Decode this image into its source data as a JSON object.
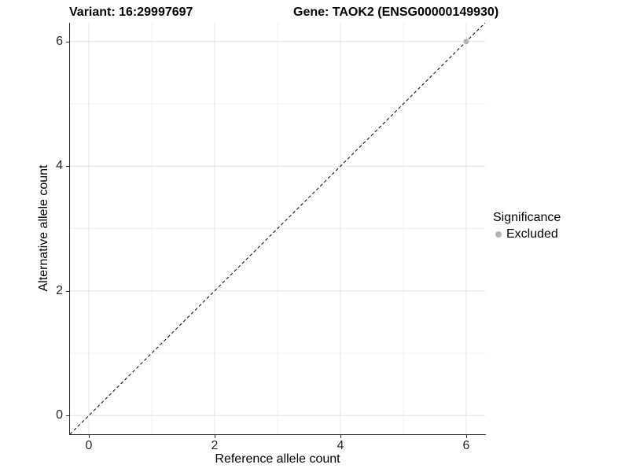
{
  "titles": {
    "variant": "Variant: 16:29997697",
    "gene": "Gene: TAOK2 (ENSG00000149930)"
  },
  "chart_data": {
    "type": "scatter",
    "title_left": "Variant: 16:29997697",
    "title_right": "Gene: TAOK2 (ENSG00000149930)",
    "xlabel": "Reference allele count",
    "ylabel": "Alternative allele count",
    "xlim": [
      -0.3,
      6.3
    ],
    "ylim": [
      -0.3,
      6.3
    ],
    "x_ticks": [
      0,
      2,
      4,
      6
    ],
    "y_ticks": [
      0,
      2,
      4,
      6
    ],
    "grid": true,
    "series": [
      {
        "name": "Excluded",
        "color": "#b3b3b3",
        "points": [
          {
            "x": 6,
            "y": 6
          }
        ]
      }
    ],
    "reference_line": {
      "type": "identity",
      "style": "dashed",
      "color": "#000000"
    },
    "legend": {
      "position": "right",
      "title": "Significance",
      "entries": [
        {
          "label": "Excluded",
          "color": "#b3b3b3"
        }
      ]
    },
    "colors": {
      "grid_major": "#e4e4e4",
      "grid_minor": "#f2f2f2",
      "axis_line": "#2b2b2b",
      "tick_text": "#262626"
    }
  }
}
